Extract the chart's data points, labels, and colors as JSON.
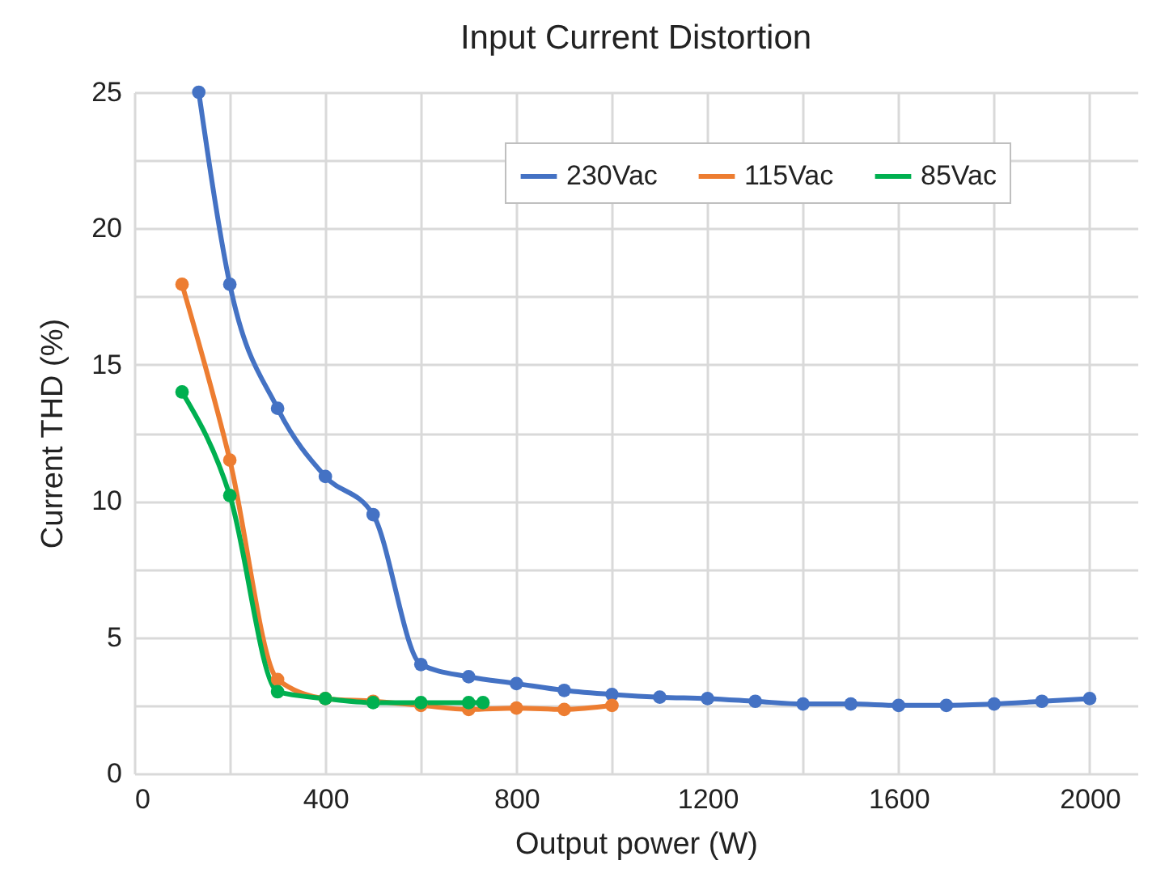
{
  "chart_data": {
    "type": "line",
    "title": "Input Current Distortion",
    "xlabel": "Output power (W)",
    "ylabel": "Current THD (%)",
    "xlim": [
      0,
      2100
    ],
    "xticks": [
      0,
      {
        "value": 200,
        "label": null
      },
      400,
      {
        "value": 600,
        "label": null
      },
      800,
      {
        "value": 1000,
        "label": null
      },
      1200,
      {
        "value": 1400,
        "label": null
      },
      1600,
      {
        "value": 1800,
        "label": null
      },
      2000
    ],
    "ylim": [
      0,
      25
    ],
    "yticks": [
      0,
      {
        "value": 2.5,
        "label": null
      },
      5,
      {
        "value": 7.5,
        "label": null
      },
      10,
      {
        "value": 12.5,
        "label": null
      },
      15,
      {
        "value": 17.5,
        "label": null
      },
      20,
      {
        "value": 22.5,
        "label": null
      },
      25
    ],
    "grid": true,
    "legend": "top right",
    "marker": "circle",
    "line_style": "solid",
    "series": [
      {
        "name": "230Vac",
        "color": "#4472c4",
        "x": [
          135,
          200,
          300,
          400,
          500,
          600,
          700,
          800,
          900,
          1000,
          1100,
          1200,
          1300,
          1400,
          1500,
          1600,
          1700,
          1800,
          1900,
          2000
        ],
        "values": [
          25,
          17.95,
          13.4,
          10.9,
          9.5,
          4.0,
          3.55,
          3.3,
          3.05,
          2.9,
          2.8,
          2.75,
          2.65,
          2.55,
          2.55,
          2.5,
          2.5,
          2.55,
          2.65,
          2.75
        ]
      },
      {
        "name": "115Vac",
        "color": "#ed7d31",
        "x": [
          100,
          200,
          300,
          400,
          500,
          600,
          700,
          800,
          900,
          1000
        ],
        "values": [
          17.95,
          11.5,
          3.45,
          2.75,
          2.65,
          2.5,
          2.35,
          2.4,
          2.35,
          2.5
        ]
      },
      {
        "name": "85Vac",
        "color": "#00b050",
        "x": [
          100,
          200,
          300,
          400,
          500,
          600,
          700,
          730
        ],
        "values": [
          14.0,
          10.2,
          3.0,
          2.75,
          2.6,
          2.6,
          2.6,
          2.6
        ]
      }
    ]
  }
}
